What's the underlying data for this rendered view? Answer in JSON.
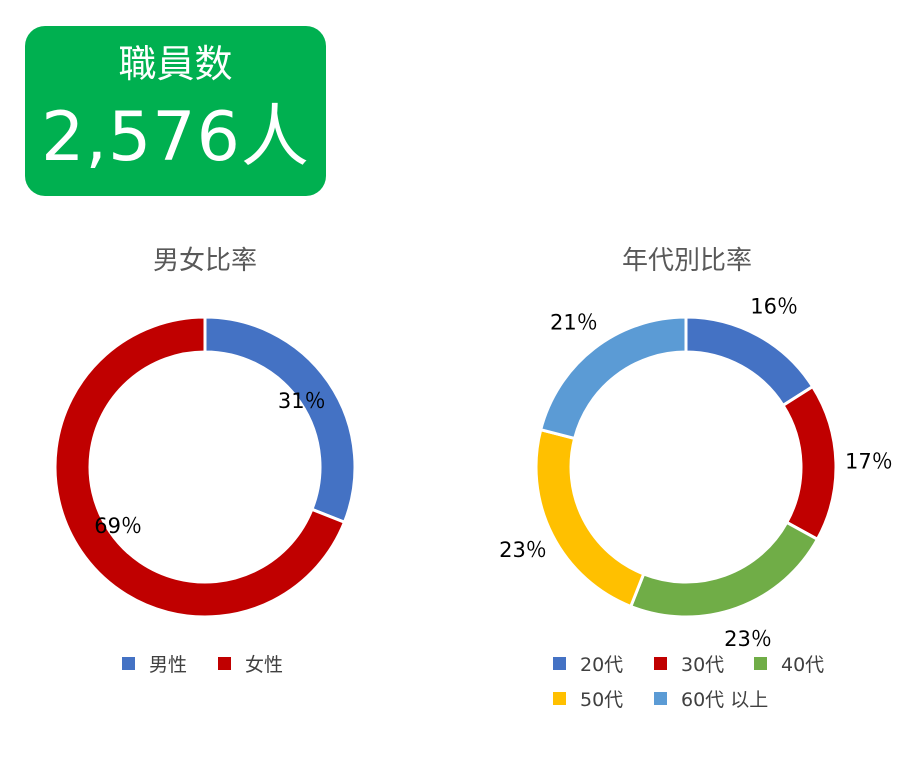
{
  "stat": {
    "label": "職員数",
    "value": "2,576人"
  },
  "chart_data": [
    {
      "type": "pie",
      "title": "男女比率",
      "categories": [
        "男性",
        "女性"
      ],
      "values": [
        31,
        69
      ],
      "data_labels": [
        "31％",
        "69％"
      ],
      "colors": [
        "#4472c4",
        "#c00000"
      ],
      "legend_position": "bottom"
    },
    {
      "type": "pie",
      "title": "年代別比率",
      "categories": [
        "20代",
        "30代",
        "40代",
        "50代",
        "60代 以上"
      ],
      "values": [
        16,
        17,
        23,
        23,
        21
      ],
      "data_labels": [
        "16％",
        "17％",
        "23％",
        "23％",
        "21％"
      ],
      "colors": [
        "#4472c4",
        "#c00000",
        "#70ad47",
        "#ffc000",
        "#5b9bd5"
      ],
      "legend_position": "bottom"
    }
  ]
}
